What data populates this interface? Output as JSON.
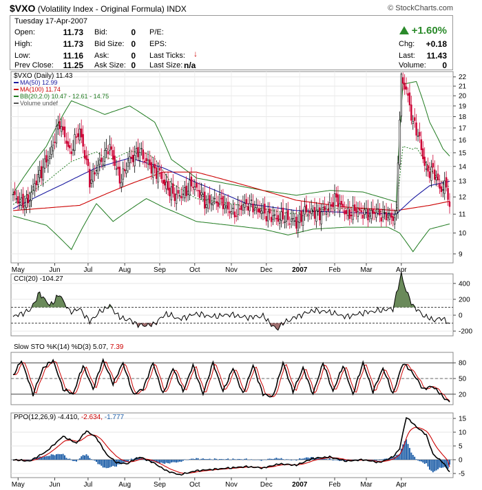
{
  "header": {
    "symbol": "$VXO",
    "description": "(Volatility Index - Original Formula)",
    "exchange": "INDX",
    "credit": "© StockCharts.com"
  },
  "quote": {
    "date": "Tuesday  17-Apr-2007",
    "open_label": "Open:",
    "open": "11.73",
    "high_label": "High:",
    "high": "11.73",
    "low_label": "Low:",
    "low": "11.16",
    "prev_close_label": "Prev Close:",
    "prev_close": "11.25",
    "bid_label": "Bid:",
    "bid": "0",
    "bid_size_label": "Bid Size:",
    "bid_size": "0",
    "ask_label": "Ask:",
    "ask": "0",
    "ask_size_label": "Ask Size:",
    "ask_size": "0",
    "pe_label": "P/E:",
    "pe": "",
    "eps_label": "EPS:",
    "eps": "",
    "last_ticks_label": "Last Ticks:",
    "last_size_label": "Last Size:",
    "last_size": "n/a",
    "change_pct": "+1.60%",
    "chg_label": "Chg:",
    "chg": "+0.18",
    "last_label": "Last:",
    "last": "11.43",
    "volume_label": "Volume:",
    "volume": "0",
    "up_color": "#2a8a2a",
    "down_color": "#cc0000"
  },
  "chart_data": [
    {
      "type": "candlestick",
      "title": "$VXO (Daily) 11.43",
      "legend": [
        {
          "name": "MA(50) 12.99",
          "color": "#1a1aa0"
        },
        {
          "name": "MA(100) 11.74",
          "color": "#cc0000"
        },
        {
          "name": "BB(20,2.0) 10.47 - 12.61 - 14.75",
          "color": "#1e7a1e"
        },
        {
          "name": "Volume undef",
          "color": "#555555"
        }
      ],
      "x_labels": [
        "May",
        "Jun",
        "Jul",
        "Aug",
        "Sep",
        "Oct",
        "Nov",
        "Dec",
        "2007",
        "Feb",
        "Mar",
        "Apr"
      ],
      "y_ticks": [
        9,
        10,
        11,
        12,
        13,
        14,
        15,
        16,
        17,
        18,
        19,
        20,
        21,
        22
      ],
      "y_scale": "log",
      "ylim": [
        8.6,
        22.6
      ],
      "close_keypoints": [
        [
          0,
          12.0
        ],
        [
          8,
          11.5
        ],
        [
          16,
          13.5
        ],
        [
          22,
          14.8
        ],
        [
          28,
          17.5
        ],
        [
          34,
          15.0
        ],
        [
          40,
          16.8
        ],
        [
          46,
          13.0
        ],
        [
          52,
          14.2
        ],
        [
          58,
          15.5
        ],
        [
          64,
          13.0
        ],
        [
          70,
          14.5
        ],
        [
          76,
          15.1
        ],
        [
          82,
          14.0
        ],
        [
          88,
          13.4
        ],
        [
          94,
          12.3
        ],
        [
          100,
          12.0
        ],
        [
          108,
          12.8
        ],
        [
          116,
          11.6
        ],
        [
          124,
          11.8
        ],
        [
          132,
          11.0
        ],
        [
          140,
          11.6
        ],
        [
          148,
          11.2
        ],
        [
          156,
          10.8
        ],
        [
          164,
          10.8
        ],
        [
          170,
          10.5
        ],
        [
          176,
          11.2
        ],
        [
          182,
          11.0
        ],
        [
          188,
          11.2
        ],
        [
          194,
          11.9
        ],
        [
          200,
          11.0
        ],
        [
          206,
          11.2
        ],
        [
          212,
          11.0
        ],
        [
          218,
          11.1
        ],
        [
          224,
          10.9
        ],
        [
          230,
          10.8
        ],
        [
          233,
          21.8
        ],
        [
          236,
          20.5
        ],
        [
          240,
          17.5
        ],
        [
          244,
          16.0
        ],
        [
          248,
          13.5
        ],
        [
          252,
          13.8
        ],
        [
          256,
          12.5
        ],
        [
          260,
          12.7
        ],
        [
          262,
          11.43
        ]
      ],
      "ma50_keypoints": [
        [
          0,
          11.3
        ],
        [
          30,
          12.8
        ],
        [
          50,
          13.9
        ],
        [
          70,
          14.6
        ],
        [
          90,
          13.9
        ],
        [
          110,
          12.9
        ],
        [
          140,
          11.6
        ],
        [
          170,
          11.2
        ],
        [
          200,
          11.1
        ],
        [
          230,
          11.0
        ],
        [
          240,
          11.9
        ],
        [
          250,
          12.7
        ],
        [
          262,
          12.99
        ]
      ],
      "ma100_keypoints": [
        [
          0,
          11.2
        ],
        [
          40,
          11.5
        ],
        [
          70,
          12.8
        ],
        [
          90,
          13.6
        ],
        [
          110,
          13.6
        ],
        [
          130,
          13.0
        ],
        [
          150,
          12.4
        ],
        [
          170,
          11.8
        ],
        [
          200,
          11.4
        ],
        [
          230,
          11.2
        ],
        [
          250,
          11.5
        ],
        [
          262,
          11.74
        ]
      ],
      "bb_upper_keypoints": [
        [
          0,
          12.2
        ],
        [
          20,
          15.5
        ],
        [
          35,
          19.5
        ],
        [
          55,
          18.2
        ],
        [
          70,
          19.0
        ],
        [
          85,
          17.5
        ],
        [
          95,
          14.5
        ],
        [
          110,
          13.2
        ],
        [
          130,
          12.8
        ],
        [
          150,
          12.4
        ],
        [
          170,
          12.1
        ],
        [
          190,
          12.4
        ],
        [
          210,
          12.3
        ],
        [
          230,
          11.7
        ],
        [
          234,
          21.2
        ],
        [
          242,
          21.5
        ],
        [
          250,
          17.5
        ],
        [
          258,
          15.3
        ],
        [
          262,
          14.75
        ]
      ],
      "bb_lower_keypoints": [
        [
          0,
          10.9
        ],
        [
          20,
          10.4
        ],
        [
          35,
          9.2
        ],
        [
          50,
          11.6
        ],
        [
          60,
          10.6
        ],
        [
          80,
          11.9
        ],
        [
          90,
          11.4
        ],
        [
          110,
          10.6
        ],
        [
          130,
          10.4
        ],
        [
          150,
          10.2
        ],
        [
          165,
          9.9
        ],
        [
          180,
          10.2
        ],
        [
          200,
          10.3
        ],
        [
          225,
          10.3
        ],
        [
          232,
          10.0
        ],
        [
          240,
          9.1
        ],
        [
          250,
          10.2
        ],
        [
          262,
          10.47
        ]
      ]
    },
    {
      "type": "line",
      "title": "CCI(20) -104.27",
      "y_ticks": [
        -200,
        0,
        200,
        400
      ],
      "ylim": [
        -260,
        520
      ],
      "keypoints": [
        [
          0,
          -20
        ],
        [
          10,
          60
        ],
        [
          16,
          280
        ],
        [
          22,
          120
        ],
        [
          28,
          260
        ],
        [
          34,
          40
        ],
        [
          40,
          80
        ],
        [
          46,
          -80
        ],
        [
          52,
          40
        ],
        [
          58,
          120
        ],
        [
          64,
          -30
        ],
        [
          70,
          -60
        ],
        [
          76,
          -130
        ],
        [
          84,
          -120
        ],
        [
          92,
          20
        ],
        [
          100,
          -50
        ],
        [
          110,
          20
        ],
        [
          120,
          -20
        ],
        [
          130,
          10
        ],
        [
          140,
          -30
        ],
        [
          150,
          -10
        ],
        [
          158,
          -180
        ],
        [
          162,
          -100
        ],
        [
          170,
          -20
        ],
        [
          180,
          60
        ],
        [
          190,
          40
        ],
        [
          200,
          -20
        ],
        [
          210,
          30
        ],
        [
          220,
          60
        ],
        [
          228,
          80
        ],
        [
          233,
          520
        ],
        [
          236,
          300
        ],
        [
          240,
          120
        ],
        [
          246,
          0
        ],
        [
          252,
          -60
        ],
        [
          258,
          -40
        ],
        [
          262,
          -104.27
        ]
      ]
    },
    {
      "type": "line",
      "title": "Slow STO %K(14) %D(3) 5.07, 7.39",
      "series_names": [
        "%K(14)",
        "%D(3)"
      ],
      "values_label": "5.07, 7.39",
      "y_ticks": [
        20,
        50,
        80
      ],
      "ylim": [
        0,
        100
      ],
      "k_keypoints": [
        [
          0,
          55
        ],
        [
          5,
          85
        ],
        [
          12,
          20
        ],
        [
          18,
          70
        ],
        [
          24,
          85
        ],
        [
          30,
          30
        ],
        [
          36,
          20
        ],
        [
          42,
          75
        ],
        [
          48,
          30
        ],
        [
          54,
          85
        ],
        [
          60,
          40
        ],
        [
          66,
          80
        ],
        [
          72,
          20
        ],
        [
          78,
          30
        ],
        [
          84,
          80
        ],
        [
          90,
          20
        ],
        [
          96,
          70
        ],
        [
          102,
          25
        ],
        [
          108,
          75
        ],
        [
          114,
          20
        ],
        [
          120,
          80
        ],
        [
          126,
          25
        ],
        [
          132,
          70
        ],
        [
          138,
          20
        ],
        [
          144,
          75
        ],
        [
          150,
          20
        ],
        [
          156,
          15
        ],
        [
          162,
          80
        ],
        [
          168,
          25
        ],
        [
          174,
          70
        ],
        [
          180,
          20
        ],
        [
          186,
          80
        ],
        [
          192,
          25
        ],
        [
          198,
          75
        ],
        [
          204,
          20
        ],
        [
          210,
          80
        ],
        [
          216,
          25
        ],
        [
          222,
          70
        ],
        [
          228,
          20
        ],
        [
          234,
          80
        ],
        [
          240,
          60
        ],
        [
          246,
          30
        ],
        [
          252,
          35
        ],
        [
          258,
          15
        ],
        [
          262,
          5.07
        ]
      ],
      "d_lag": 2
    },
    {
      "type": "line+bar",
      "title": "PPO(12,26,9) -4.410, -2.634, -1.777",
      "series_names": [
        "PPO",
        "Signal",
        "Histogram"
      ],
      "values": [
        "-4.410",
        "-2.634",
        "-1.777"
      ],
      "value_colors": [
        "#000000",
        "#cc0000",
        "#1f5fa8"
      ],
      "y_ticks": [
        -5,
        0,
        5,
        10,
        15
      ],
      "ylim": [
        -6.5,
        17
      ],
      "ppo_keypoints": [
        [
          0,
          0
        ],
        [
          10,
          -0.5
        ],
        [
          20,
          3
        ],
        [
          30,
          8.5
        ],
        [
          38,
          6
        ],
        [
          44,
          10.5
        ],
        [
          50,
          8
        ],
        [
          56,
          2
        ],
        [
          62,
          -1
        ],
        [
          68,
          -1.5
        ],
        [
          76,
          1
        ],
        [
          84,
          -1
        ],
        [
          92,
          -4
        ],
        [
          100,
          -5.5
        ],
        [
          110,
          -4
        ],
        [
          120,
          -3.5
        ],
        [
          130,
          -3
        ],
        [
          140,
          -2.5
        ],
        [
          150,
          -3
        ],
        [
          160,
          -1.5
        ],
        [
          170,
          -2
        ],
        [
          180,
          0.5
        ],
        [
          190,
          1
        ],
        [
          200,
          -0.5
        ],
        [
          210,
          0
        ],
        [
          220,
          -1
        ],
        [
          228,
          1
        ],
        [
          232,
          4
        ],
        [
          236,
          15.5
        ],
        [
          242,
          12
        ],
        [
          248,
          9
        ],
        [
          252,
          2
        ],
        [
          258,
          -1
        ],
        [
          262,
          -4.41
        ]
      ],
      "signal_smoothing": 0.2
    }
  ]
}
